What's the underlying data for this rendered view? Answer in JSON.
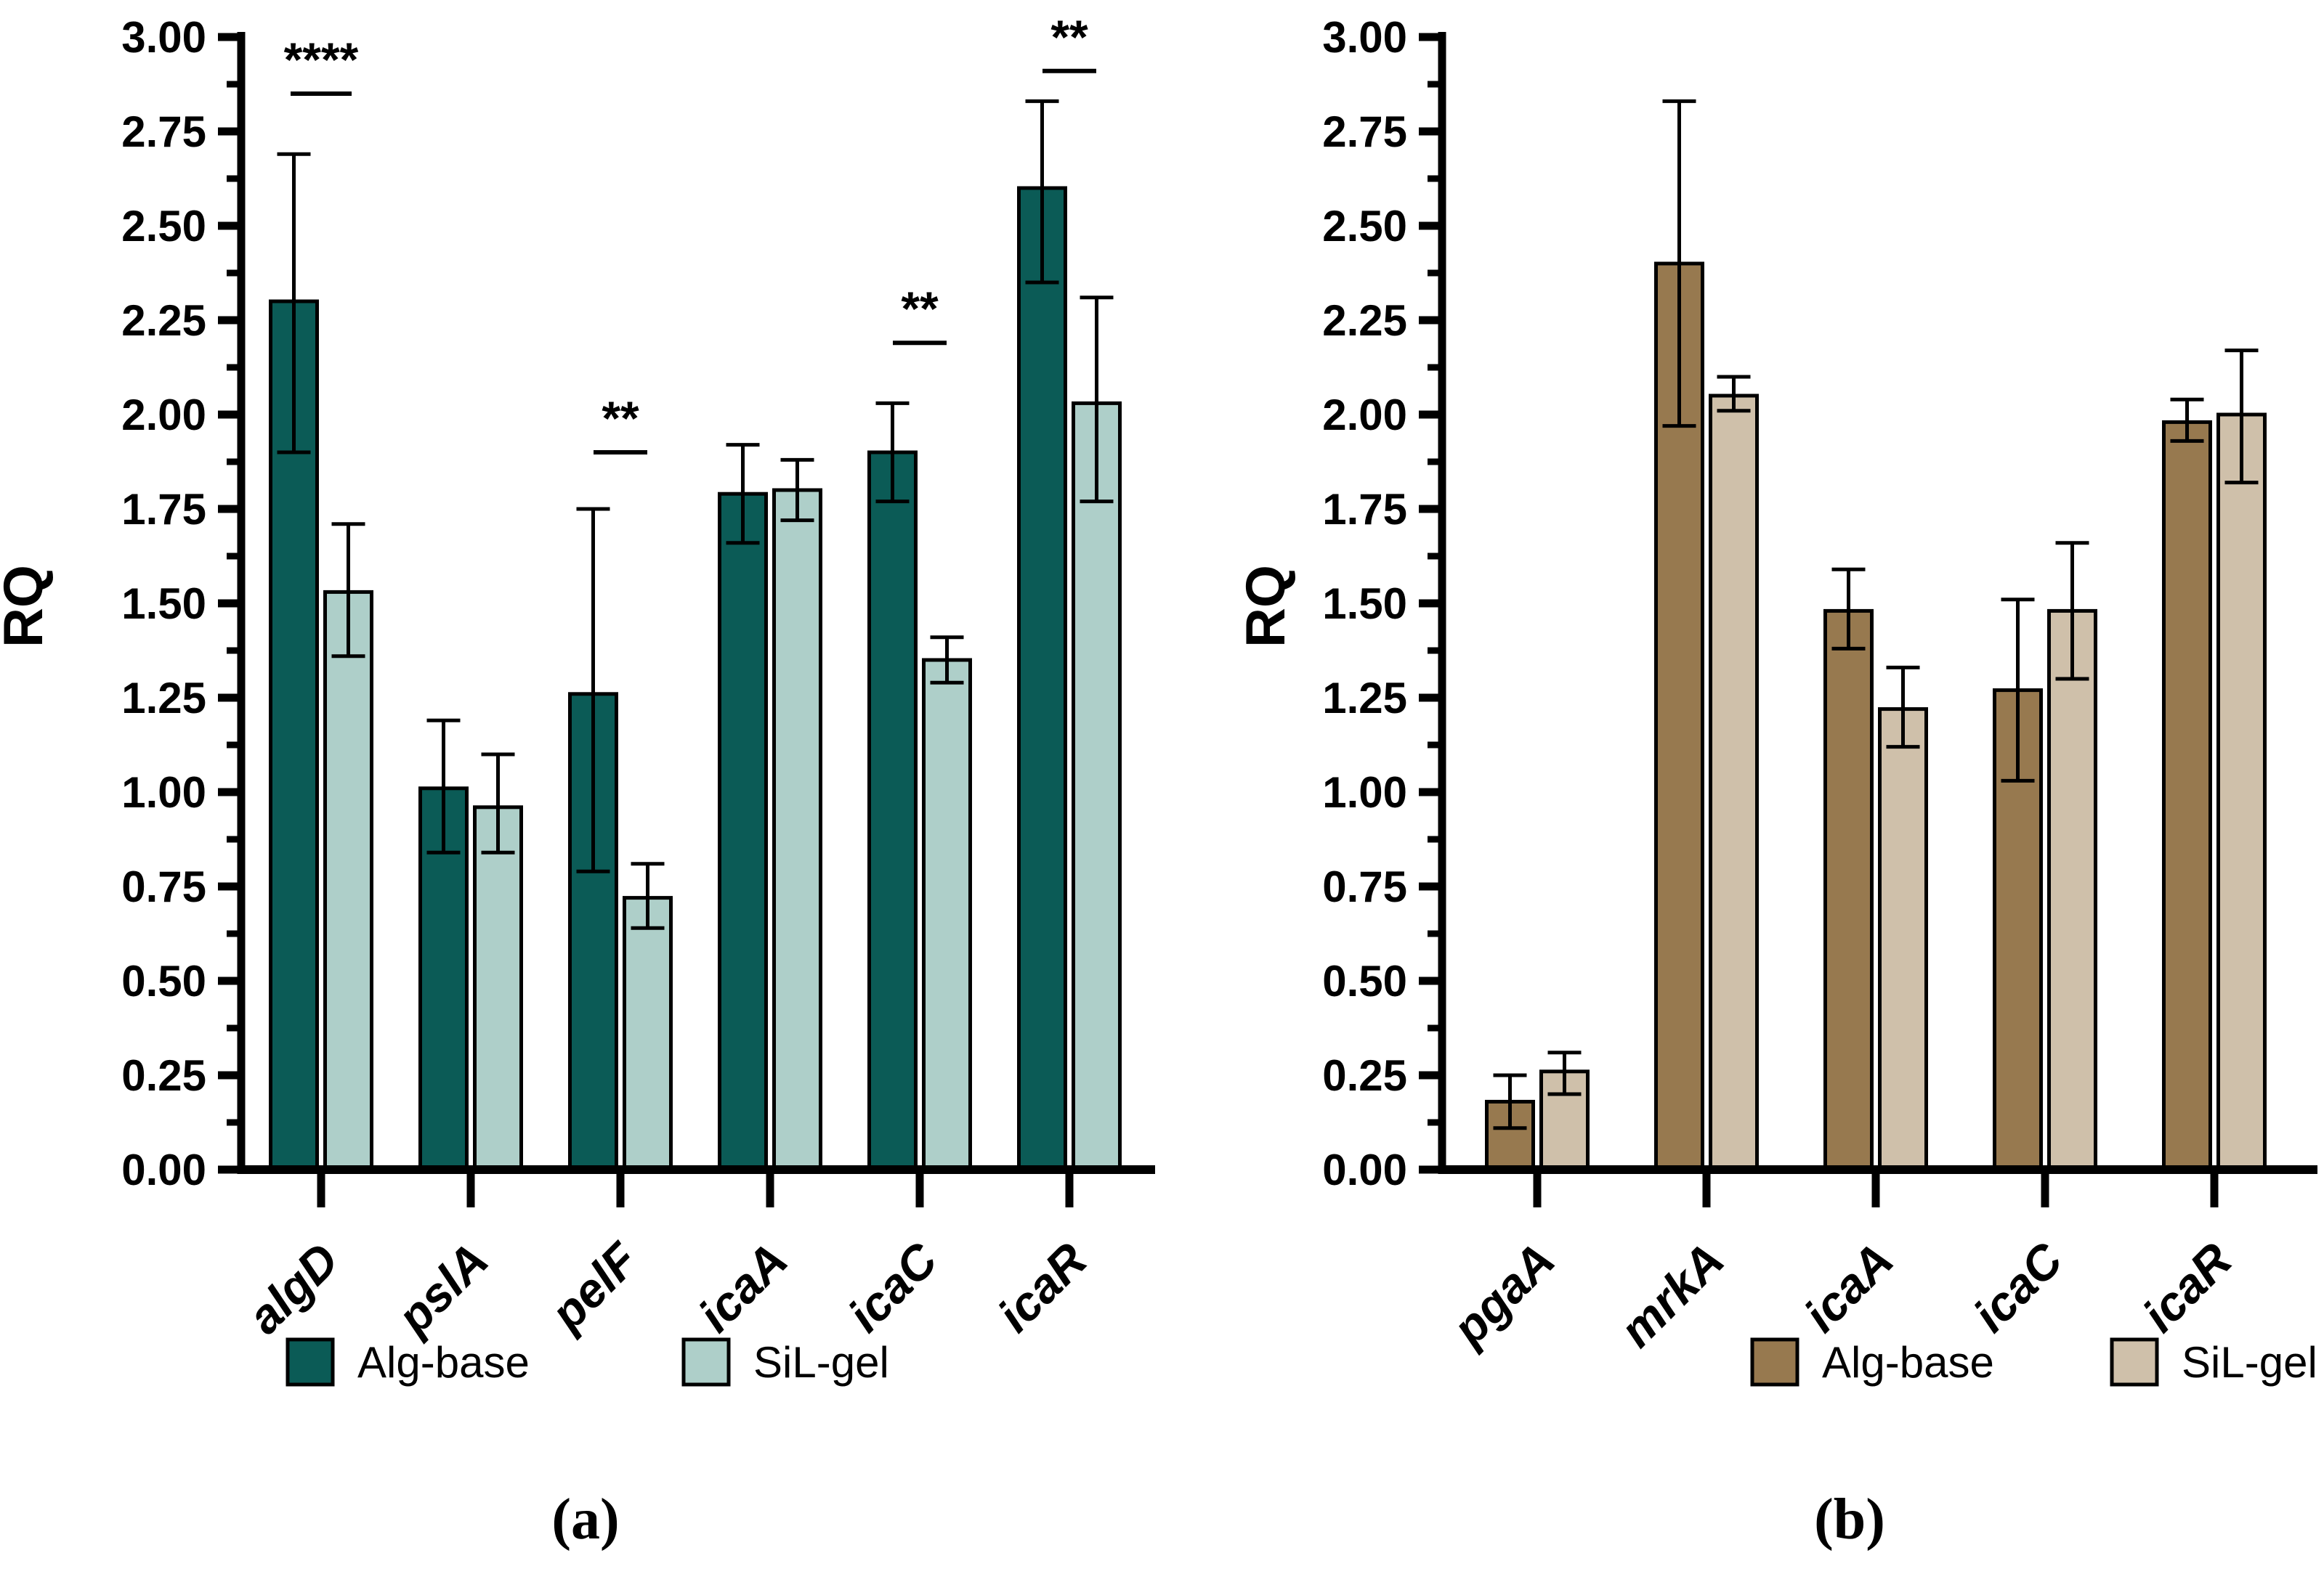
{
  "figure": {
    "background": "#ffffff",
    "black": "#000000"
  },
  "chart_data": [
    {
      "type": "bar",
      "panel_label": "(a)",
      "title": "",
      "xlabel": "",
      "ylabel": "RQ",
      "ylim": [
        0.0,
        3.0
      ],
      "ytick_step": 0.25,
      "yminor_step": 0.125,
      "ytick_labels": [
        "0.00",
        "0.25",
        "0.50",
        "0.75",
        "1.00",
        "1.25",
        "1.50",
        "1.75",
        "2.00",
        "2.25",
        "2.50",
        "2.75",
        "3.00"
      ],
      "grid": false,
      "legend_position": "bottom",
      "categories": [
        "algD",
        "pslA",
        "pelF",
        "icaA",
        "icaC",
        "icaR"
      ],
      "series": [
        {
          "name": "Alg-base",
          "color": "#0B5B56",
          "values": [
            2.3,
            1.01,
            1.26,
            1.79,
            1.9,
            2.6
          ],
          "error_low": [
            1.9,
            0.84,
            0.79,
            1.66,
            1.77,
            2.35
          ],
          "error_high": [
            2.69,
            1.19,
            1.75,
            1.92,
            2.03,
            2.83
          ]
        },
        {
          "name": "SiL-gel",
          "color": "#AECFC9",
          "values": [
            1.53,
            0.96,
            0.72,
            1.8,
            1.35,
            2.03
          ],
          "error_low": [
            1.36,
            0.84,
            0.64,
            1.72,
            1.29,
            1.77
          ],
          "error_high": [
            1.71,
            1.1,
            0.81,
            1.88,
            1.41,
            2.31
          ]
        }
      ],
      "significance": [
        {
          "category": "algD",
          "label": "****",
          "line_y": 2.85
        },
        {
          "category": "pelF",
          "label": "**",
          "line_y": 1.9
        },
        {
          "category": "icaC",
          "label": "**",
          "line_y": 2.19
        },
        {
          "category": "icaR",
          "label": "**",
          "line_y": 2.91
        }
      ]
    },
    {
      "type": "bar",
      "panel_label": "(b)",
      "title": "",
      "xlabel": "",
      "ylabel": "RQ",
      "ylim": [
        0.0,
        3.0
      ],
      "ytick_step": 0.25,
      "yminor_step": 0.125,
      "ytick_labels": [
        "0.00",
        "0.25",
        "0.50",
        "0.75",
        "1.00",
        "1.25",
        "1.50",
        "1.75",
        "2.00",
        "2.25",
        "2.50",
        "2.75",
        "3.00"
      ],
      "grid": false,
      "legend_position": "bottom",
      "categories": [
        "pgaA",
        "mrkA",
        "icaA",
        "icaC",
        "icaR"
      ],
      "series": [
        {
          "name": "Alg-base",
          "color": "#97794F",
          "values": [
            0.18,
            2.4,
            1.48,
            1.27,
            1.98
          ],
          "error_low": [
            0.11,
            1.97,
            1.38,
            1.03,
            1.93
          ],
          "error_high": [
            0.25,
            2.83,
            1.59,
            1.51,
            2.04
          ]
        },
        {
          "name": "SiL-gel",
          "color": "#CFC0AA",
          "values": [
            0.26,
            2.05,
            1.22,
            1.48,
            2.0
          ],
          "error_low": [
            0.2,
            2.01,
            1.12,
            1.3,
            1.82
          ],
          "error_high": [
            0.31,
            2.1,
            1.33,
            1.66,
            2.17
          ]
        }
      ],
      "significance": []
    }
  ]
}
